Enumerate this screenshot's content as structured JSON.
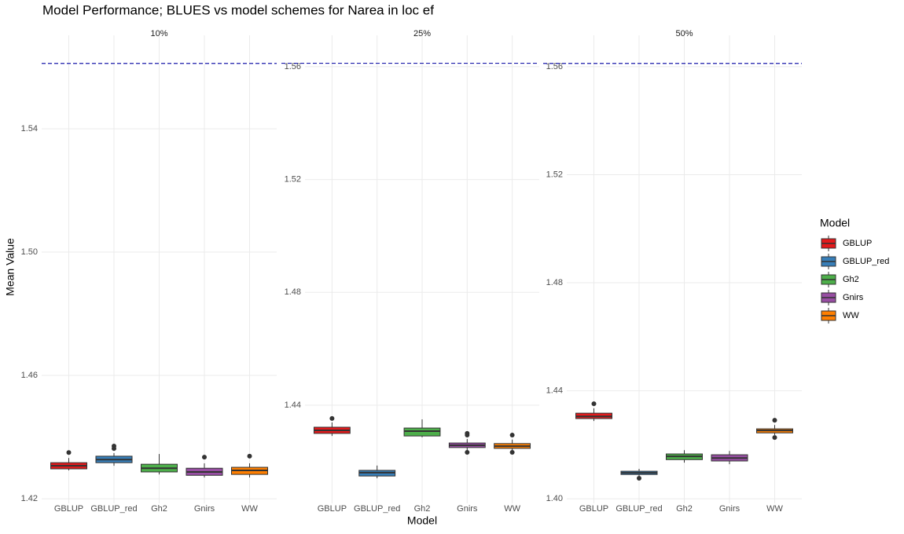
{
  "chart_data": {
    "type": "box",
    "title": "Model Performance; BLUES vs model schemes for Narea in loc ef",
    "xlabel": "Model",
    "ylabel": "Mean Value",
    "legend_title": "Model",
    "categories": [
      "GBLUP",
      "GBLUP_red",
      "Gh2",
      "Gnirs",
      "WW"
    ],
    "colors": [
      "#e41a1c",
      "#377eb8",
      "#4daf4a",
      "#984ea3",
      "#ff7f00"
    ],
    "reference_line": 1.5612,
    "reference_color": "#1a1aaa",
    "grid": true,
    "facets": [
      {
        "label": "10%",
        "ylim": [
          1.4185,
          1.5703
        ],
        "yticks": [
          1.42,
          1.46,
          {
            "value": 1.5,
            "label": "1.50"
          },
          1.54
        ],
        "boxes": [
          {
            "whisker_low": 1.4292,
            "q1": 1.4297,
            "median": 1.4307,
            "q3": 1.4317,
            "whisker_high": 1.4332,
            "outliers": [
              1.435
            ]
          },
          {
            "whisker_low": 1.4307,
            "q1": 1.4317,
            "median": 1.4327,
            "q3": 1.4338,
            "whisker_high": 1.4348,
            "outliers": [
              1.4363,
              1.4371
            ]
          },
          {
            "whisker_low": 1.4279,
            "q1": 1.4287,
            "median": 1.4299,
            "q3": 1.4312,
            "whisker_high": 1.4345,
            "outliers": []
          },
          {
            "whisker_low": 1.4269,
            "q1": 1.4276,
            "median": 1.4287,
            "q3": 1.4299,
            "whisker_high": 1.4315,
            "outliers": [
              1.4335
            ]
          },
          {
            "whisker_low": 1.4269,
            "q1": 1.4279,
            "median": 1.4292,
            "q3": 1.4302,
            "whisker_high": 1.4315,
            "outliers": [
              1.4338
            ]
          }
        ]
      },
      {
        "label": "25%",
        "ylim": [
          1.4052,
          1.5711
        ],
        "yticks": [
          1.44,
          1.48,
          1.52,
          1.56
        ],
        "boxes": [
          {
            "whisker_low": 1.4291,
            "q1": 1.43,
            "median": 1.4311,
            "q3": 1.4322,
            "whisker_high": 1.4339,
            "outliers": [
              1.4353
            ]
          },
          {
            "whisker_low": 1.4141,
            "q1": 1.4149,
            "median": 1.4161,
            "q3": 1.4169,
            "whisker_high": 1.4186,
            "outliers": []
          },
          {
            "whisker_low": 1.4286,
            "q1": 1.4291,
            "median": 1.4308,
            "q3": 1.4319,
            "whisker_high": 1.435,
            "outliers": []
          },
          {
            "whisker_low": 1.4239,
            "q1": 1.425,
            "median": 1.4258,
            "q3": 1.4266,
            "whisker_high": 1.428,
            "outliers": [
              1.43,
              1.4294,
              1.4233
            ]
          },
          {
            "whisker_low": 1.4239,
            "q1": 1.4247,
            "median": 1.4255,
            "q3": 1.4264,
            "whisker_high": 1.4278,
            "outliers": [
              1.4294,
              1.4233
            ]
          }
        ]
      },
      {
        "label": "50%",
        "ylim": [
          1.3983,
          1.5716
        ],
        "yticks": [
          {
            "value": 1.4,
            "label": "1.40"
          },
          1.44,
          1.48,
          1.52,
          1.56
        ],
        "boxes": [
          {
            "whisker_low": 1.4288,
            "q1": 1.4297,
            "median": 1.4305,
            "q3": 1.4317,
            "whisker_high": 1.4335,
            "outliers": [
              1.4352
            ]
          },
          {
            "whisker_low": 1.4084,
            "q1": 1.409,
            "median": 1.4096,
            "q3": 1.4102,
            "whisker_high": 1.4111,
            "outliers": [
              1.4076
            ]
          },
          {
            "whisker_low": 1.4134,
            "q1": 1.4145,
            "median": 1.4157,
            "q3": 1.4166,
            "whisker_high": 1.418,
            "outliers": []
          },
          {
            "whisker_low": 1.4128,
            "q1": 1.414,
            "median": 1.4151,
            "q3": 1.4163,
            "whisker_high": 1.4177,
            "outliers": []
          },
          {
            "whisker_low": 1.4236,
            "q1": 1.4244,
            "median": 1.4253,
            "q3": 1.4259,
            "whisker_high": 1.4273,
            "outliers": [
              1.4291,
              1.4227
            ]
          }
        ]
      }
    ]
  }
}
